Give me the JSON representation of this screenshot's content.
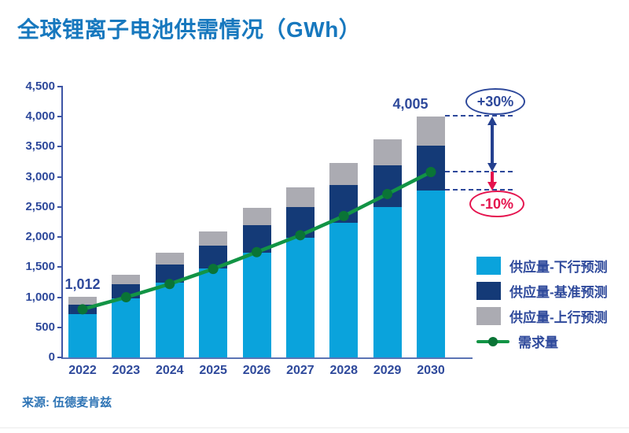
{
  "title": "全球锂离子电池供需情况（GWh）",
  "source": "来源: 伍德麦肯兹",
  "chart_data": {
    "type": "bar",
    "stacked": true,
    "title": "全球锂离子电池供需情况（GWh）",
    "xlabel": "",
    "ylabel": "GWh",
    "ylim": [
      0,
      4500
    ],
    "ytick_step": 500,
    "grid": false,
    "legend_position": "right",
    "categories": [
      "2022",
      "2023",
      "2024",
      "2025",
      "2026",
      "2027",
      "2028",
      "2029",
      "2030"
    ],
    "series": [
      {
        "name": "供应量-下行预测",
        "color": "#0AA3DC",
        "values": [
          720,
          980,
          1240,
          1480,
          1735,
          1990,
          2240,
          2500,
          2773
        ]
      },
      {
        "name": "供应量-基准预测",
        "color": "#143A77",
        "values": [
          155,
          235,
          310,
          380,
          465,
          510,
          620,
          690,
          747
        ]
      },
      {
        "name": "供应量-上行预测",
        "color": "#ABABB2",
        "values": [
          137,
          160,
          195,
          230,
          285,
          330,
          375,
          430,
          485
        ]
      }
    ],
    "bar_totals": [
      1012,
      1375,
      1745,
      2090,
      2485,
      2830,
      3235,
      3620,
      4005
    ],
    "line": {
      "name": "需求量",
      "color": "#129445",
      "dot_color": "#0A7436",
      "values": [
        800,
        1000,
        1220,
        1470,
        1750,
        2030,
        2350,
        2715,
        3081
      ]
    }
  },
  "annotations": {
    "first_bar_label": "1,012",
    "last_bar_label": "4,005",
    "upper_badge": "+30%",
    "lower_badge": "-10%",
    "upper_badge_color": "#2E499B",
    "lower_badge_color": "#E5134E",
    "arrow_blue_color": "#24408F",
    "arrow_red_color": "#E5134E"
  },
  "axis": {
    "ytick_labels": [
      "0",
      "500",
      "1,000",
      "1,500",
      "2,000",
      "2,500",
      "3,000",
      "3,500",
      "4,000",
      "4,500"
    ]
  }
}
